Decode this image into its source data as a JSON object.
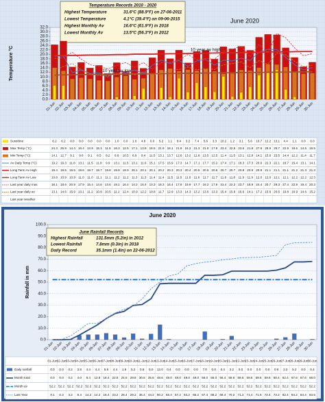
{
  "chart_data": [
    {
      "type": "bar",
      "title": "June 2020",
      "y_label": "Temperature °C",
      "records_title": "Temperature Records 2010 - 2020",
      "records": [
        {
          "label": "Highest Temperature",
          "value": "31.6°C (88.9°F) on 27-06-2011"
        },
        {
          "label": "Lowest Temperature",
          "value": "4.1°C (39.4°F) on 09-06-2015"
        },
        {
          "label": "Highest Monthly Av",
          "value": "16.6°C (61.9°F) in 2018"
        },
        {
          "label": "Lowest Monthly Av",
          "value": "13.5°C (56.3°F) in 2012"
        }
      ],
      "annotations": [
        "10 year av high",
        "10 year av low"
      ],
      "categories": [
        "01-Jun",
        "02-Jun",
        "03-Jun",
        "04-Jun",
        "05-Jun",
        "06-Jun",
        "07-Jun",
        "08-Jun",
        "09-Jun",
        "10-Jun",
        "11-Jun",
        "12-Jun",
        "13-Jun",
        "14-Jun",
        "15-Jun",
        "16-Jun",
        "17-Jun",
        "18-Jun",
        "19-Jun",
        "20-Jun",
        "21-Jun",
        "22-Jun",
        "23-Jun",
        "24-Jun",
        "25-Jun",
        "26-Jun",
        "27-Jun",
        "28-Jun",
        "29-Jun",
        "30-Jun"
      ],
      "ylim": [
        0,
        32
      ],
      "yticks": [
        {
          "value": 0,
          "label": "0.0"
        },
        {
          "value": 2,
          "label": "2.0"
        },
        {
          "value": 4,
          "label": "4.0"
        },
        {
          "value": 6,
          "label": "6.0"
        },
        {
          "value": 8,
          "label": "8.0"
        },
        {
          "value": 10,
          "label": "10.0"
        },
        {
          "value": 12,
          "label": "12.0"
        },
        {
          "value": 14,
          "label": "14.0"
        },
        {
          "value": 16,
          "label": "16.0"
        },
        {
          "value": 18,
          "label": "18.0"
        },
        {
          "value": 20,
          "label": "20.0"
        },
        {
          "value": 22,
          "label": "22.0"
        },
        {
          "value": 24,
          "label": "24.0"
        },
        {
          "value": 26,
          "label": "26.0"
        },
        {
          "value": 28,
          "label": "28.0"
        },
        {
          "value": 30,
          "label": "30.0"
        },
        {
          "value": 32,
          "label": "32.0"
        }
      ],
      "grid": true,
      "series": [
        {
          "name": "Max Temp (°C)",
          "color": "#cc1010",
          "style": "bar",
          "values": [
            24.3,
            25.9,
            14.4,
            16.4,
            13.9,
            15.1,
            11.5,
            16.3,
            12.5,
            17.1,
            13.8,
            18.5,
            21.9,
            18.1,
            21.9,
            16.2,
            21.3,
            21.8,
            17.9,
            23.4,
            22.5,
            23.6,
            21.8,
            27.6,
            28.9,
            28.7,
            22.9,
            18.6,
            14.5,
            16.5
          ]
        },
        {
          "name": "Min Temp (°C)",
          "color": "#d9731c",
          "style": "bar",
          "values": [
            14.1,
            12.7,
            9.1,
            9.6,
            9.1,
            8.5,
            8.2,
            9.9,
            10.5,
            8.9,
            9.4,
            11.5,
            13.1,
            13.7,
            12.6,
            13.2,
            12.8,
            13.5,
            12.5,
            11.4,
            11.5,
            13.1,
            12.8,
            14.1,
            15.6,
            15.5,
            14.4,
            12.2,
            11.4,
            11.7
          ]
        },
        {
          "name": "Sunshine",
          "color": "#ffe600",
          "style": "bar",
          "values": [
            6.2,
            6.2,
            0,
            0,
            0,
            0,
            0,
            1,
            0,
            1.6,
            4.8,
            0,
            5.2,
            1.1,
            9.4,
            3.2,
            7.4,
            5.6,
            3.3,
            10.2,
            1.2,
            3.1,
            5.6,
            10.7,
            12.2,
            13.1,
            4.4,
            1.1,
            0,
            0
          ],
          "value_labels": [
            "6.2",
            "6.2",
            "0.0",
            "0.0",
            "0.0",
            "0.0",
            "0.0",
            "1.0",
            "0.0",
            "1.6",
            "4.8",
            "0.0",
            "5.2",
            "1.1",
            "9.4",
            "3.2",
            "7.4",
            "5.6",
            "3.3",
            "10.2",
            "1.2",
            "3.1",
            "5.6",
            "10.7",
            "12.2",
            "13.1",
            "4.4",
            "1.1",
            "0.0",
            "0.0"
          ]
        },
        {
          "name": "Av Daily Temp (°C)",
          "color": "#3a7fd8",
          "style": "line",
          "values": [
            19.2,
            19.3,
            11.8,
            13.1,
            11.5,
            11.8,
            9.9,
            13.1,
            11.5,
            13.1,
            11.6,
            15.1,
            17.5,
            15.9,
            17.3,
            14.7,
            17.1,
            17.7,
            15.2,
            17.4,
            17.1,
            18.3,
            17.3,
            20.9,
            22.3,
            22.1,
            18.7,
            15.4,
            13.1,
            14.1
          ]
        },
        {
          "name": "Long Term Av High",
          "color": "#e02020",
          "style": "line",
          "thick": true,
          "values": [
            19.4,
            19.5,
            19.5,
            19.6,
            19.7,
            19.7,
            19.8,
            19.9,
            19.9,
            20.1,
            20.1,
            20.1,
            20.2,
            20.3,
            20.3,
            20.4,
            20.5,
            20.5,
            20.6,
            20.7,
            20.7,
            20.8,
            20.9,
            20.9,
            21.1,
            21.1,
            21.1,
            21.2,
            21.3,
            21.3
          ]
        },
        {
          "name": "Long Term Av Low",
          "color": "#a0522d",
          "style": "line",
          "thick": true,
          "values": [
            10.8,
            10.9,
            10.9,
            11,
            11,
            11.1,
            11.1,
            11.2,
            11.2,
            11.3,
            11.3,
            11.4,
            11.4,
            11.5,
            11.5,
            11.6,
            11.6,
            11.7,
            11.7,
            11.8,
            11.8,
            11.9,
            11.9,
            12,
            12,
            12.1,
            12.1,
            12.2,
            12.2,
            12.3
          ],
          "value_labels": [
            "10.8",
            "10.9",
            "10.9",
            "11.0",
            "11.0",
            "11.1",
            "11.1",
            "11.2",
            "11.2",
            "11.3",
            "11.3",
            "11.4",
            "11.4",
            "11.5",
            "11.5",
            "11.6",
            "11.6",
            "11.7",
            "11.7",
            "11.8",
            "11.8",
            "11.9",
            "11.9",
            "12.0",
            "12.0",
            "12.1",
            "12.1",
            "12.2",
            "12.2",
            "12.3"
          ]
        },
        {
          "name": "Last year daily max",
          "color": "#e04040",
          "style": "line",
          "dash": true,
          "values": [
            18.1,
            18.6,
            20.9,
            17.9,
            15.4,
            14.6,
            13.6,
            15.1,
            16.4,
            14.2,
            16.4,
            13.3,
            16.3,
            16.4,
            17.6,
            19.9,
            17.7,
            18.2,
            17.8,
            21.4,
            22.2,
            23.7,
            18.9,
            24.4,
            20.7,
            29.3,
            27.4,
            22.9,
            19.4,
            20.3
          ]
        },
        {
          "name": "Last year daily av",
          "color": "#c08040",
          "style": "line",
          "dash": true,
          "values": [
            13.1,
            14.6,
            15.9,
            13.1,
            11.2,
            10.6,
            10.5,
            11.2,
            12.4,
            10.9,
            12.2,
            10.8,
            11.7,
            12.9,
            13.3,
            14.3,
            13.2,
            13.6,
            13.3,
            15.4,
            15.9,
            16.6,
            14.1,
            17.2,
            15.6,
            20.6,
            19.8,
            16.9,
            14.6,
            15.2
          ]
        }
      ],
      "extra_rows": [
        "Last year weather"
      ]
    },
    {
      "type": "bar",
      "title": "June 2020",
      "y_label": "Rainfall in mm",
      "records_title": "June Rainfall Records",
      "records": [
        {
          "label": "Highest Rainfall",
          "value": "131.5mm (5.2in) in 2012"
        },
        {
          "label": "Lowest Rainfall",
          "value": "7.8mm (0.3in) in 2018"
        },
        {
          "label": "Daily Record",
          "value": "35.1mm (1.4in) on 22-06-2012"
        }
      ],
      "annotations": [],
      "categories": [
        "01-Jun",
        "02-Jun",
        "03-Jun",
        "04-Jun",
        "05-Jun",
        "06-Jun",
        "07-Jun",
        "08-Jun",
        "09-Jun",
        "10-Jun",
        "11-Jun",
        "12-Jun",
        "13-Jun",
        "14-Jun",
        "15-Jun",
        "16-Jun",
        "17-Jun",
        "18-Jun",
        "19-Jun",
        "20-Jun",
        "21-Jun",
        "22-Jun",
        "23-Jun",
        "24-Jun",
        "25-Jun",
        "26-Jun",
        "27-Jun",
        "28-Jun",
        "29-Jun",
        "30-Jun"
      ],
      "ylim": [
        0,
        100
      ],
      "yticks": [
        {
          "value": 0,
          "label": "0.0"
        },
        {
          "value": 10,
          "label": "10.0"
        },
        {
          "value": 20,
          "label": "20.0"
        },
        {
          "value": 30,
          "label": "30.0"
        },
        {
          "value": 40,
          "label": "40.0"
        },
        {
          "value": 50,
          "label": "50.0"
        },
        {
          "value": 60,
          "label": "60.0"
        },
        {
          "value": 70,
          "label": "70.0"
        },
        {
          "value": 80,
          "label": "80.0"
        },
        {
          "value": 90,
          "label": "90.0"
        },
        {
          "value": 100,
          "label": "100.0"
        }
      ],
      "grid": true,
      "series": [
        {
          "name": "Daily rainfall",
          "color": "#3b6fc2",
          "style": "bar",
          "values": [
            0,
            0,
            0.2,
            3.8,
            4.4,
            4.4,
            5.6,
            4.4,
            1.8,
            5.2,
            0.8,
            5,
            13,
            0.4,
            0,
            0,
            0,
            7,
            0,
            0.4,
            3.2,
            0,
            0,
            0,
            0,
            0.8,
            2,
            5.2,
            0,
            0.4
          ],
          "value_labels": [
            "0.0",
            "0.0",
            "0.2",
            "3.8",
            "4.4",
            "4.4",
            "5.6",
            "4.4",
            "1.8",
            "5.2",
            "0.8",
            "5.0",
            "13.0",
            "0.4",
            "0.0",
            "0.0",
            "0.0",
            "7.0",
            "0.0",
            "0.4",
            "3.2",
            "0.0",
            "0.0",
            "0.0",
            "0.0",
            "0.8",
            "2.0",
            "5.2",
            "0.0",
            "0.4"
          ]
        },
        {
          "name": "Month total",
          "color": "#2a4a86",
          "style": "line",
          "thick": true,
          "values": [
            0,
            0,
            0.2,
            4,
            8.4,
            12.8,
            18.4,
            22.8,
            24.6,
            29.8,
            30.6,
            35.6,
            48.6,
            49,
            49,
            49,
            49,
            56,
            56,
            56.4,
            59.6,
            59.6,
            59.6,
            59.6,
            59.6,
            60.4,
            62.4,
            67.6,
            67.6,
            68
          ],
          "value_labels": [
            "0.0",
            "0.0",
            "0.2",
            "4.0",
            "8.4",
            "12.8",
            "18.4",
            "22.8",
            "24.6",
            "29.8",
            "30.6",
            "35.6",
            "48.6",
            "49.0",
            "49.0",
            "49.0",
            "49.0",
            "56.0",
            "56.0",
            "56.4",
            "59.6",
            "59.6",
            "59.6",
            "59.6",
            "59.6",
            "60.4",
            "62.4",
            "67.6",
            "67.6",
            "68.0"
          ]
        },
        {
          "name": "Month av",
          "color": "#1f6fd0",
          "style": "line",
          "thick": true,
          "dashdot": true,
          "values": [
            52.2,
            52.2,
            52.2,
            52.2,
            52.2,
            52.2,
            52.2,
            52.2,
            52.2,
            52.2,
            52.2,
            52.2,
            52.2,
            52.2,
            52.2,
            52.2,
            52.2,
            52.2,
            52.2,
            52.2,
            52.2,
            52.2,
            52.2,
            52.2,
            52.2,
            52.2,
            52.2,
            52.2,
            52.2,
            52.2
          ]
        },
        {
          "name": "Last Year",
          "color": "#5a8ee0",
          "style": "line",
          "dash": true,
          "values": [
            0.1,
            0.3,
            3.2,
            8.4,
            14.2,
            14.2,
            18.4,
            23.2,
            26.4,
            29.2,
            35.4,
            44.2,
            50.2,
            55.4,
            57.2,
            64.2,
            66.2,
            67.4,
            68.2,
            69.4,
            70.2,
            71.2,
            71.4,
            71.6,
            72.4,
            73.2,
            82.4,
            84.2,
            84.4,
            84.6
          ]
        }
      ],
      "extra_rows": []
    }
  ]
}
